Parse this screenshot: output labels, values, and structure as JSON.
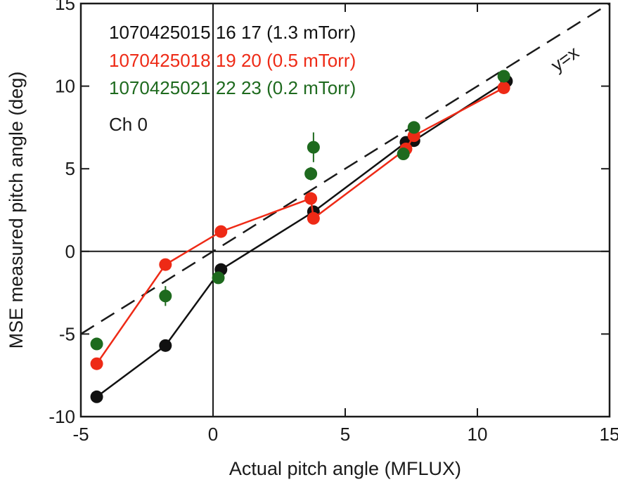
{
  "chart_data": {
    "type": "scatter",
    "title": "",
    "xlabel": "Actual pitch angle (MFLUX)",
    "ylabel": "MSE measured pitch angle (deg)",
    "xlim": [
      -5,
      15
    ],
    "ylim": [
      -10,
      15
    ],
    "x_ticks": [
      "-5",
      "0",
      "5",
      "10",
      "15"
    ],
    "y_ticks": [
      "-10",
      "-5",
      "0",
      "5",
      "10",
      "15"
    ],
    "annotations": {
      "channel": "Ch 0",
      "identity_line": "y=x"
    },
    "reference_lines": {
      "x_zero": true,
      "y_zero": true,
      "identity": true
    },
    "legend_placement": "top-left",
    "series": [
      {
        "name": "1070425015 16 17 (1.3 mTorr)",
        "color": "#111111",
        "connected": true,
        "x": [
          -4.4,
          -1.8,
          0.3,
          3.8,
          7.3,
          7.6,
          11.1
        ],
        "y": [
          -8.8,
          -5.7,
          -1.1,
          2.4,
          6.6,
          6.7,
          10.3
        ],
        "error": [
          0.2,
          0.2,
          0.2,
          0.3,
          0.2,
          0.2,
          0.2
        ]
      },
      {
        "name": "1070425018 19 20 (0.5 mTorr)",
        "color": "#ee2a16",
        "connected": true,
        "x": [
          -4.4,
          -1.8,
          0.3,
          3.7,
          3.8,
          7.3,
          7.6,
          11.0
        ],
        "y": [
          -6.8,
          -0.8,
          1.2,
          3.2,
          2.0,
          6.2,
          7.0,
          9.9
        ],
        "error": [
          0.2,
          0.2,
          0.2,
          0.2,
          0.2,
          0.2,
          0.2,
          0.2
        ]
      },
      {
        "name": "1070425021 22 23 (0.2 mTorr)",
        "color": "#1e6a1e",
        "connected": false,
        "x": [
          -4.4,
          -1.8,
          0.2,
          3.7,
          3.8,
          7.2,
          7.6,
          11.0
        ],
        "y": [
          -5.6,
          -2.7,
          -1.6,
          4.7,
          6.3,
          5.9,
          7.5,
          10.6
        ],
        "error": [
          0.3,
          0.6,
          0.3,
          0.4,
          0.9,
          0.3,
          0.3,
          0.3
        ]
      }
    ]
  }
}
